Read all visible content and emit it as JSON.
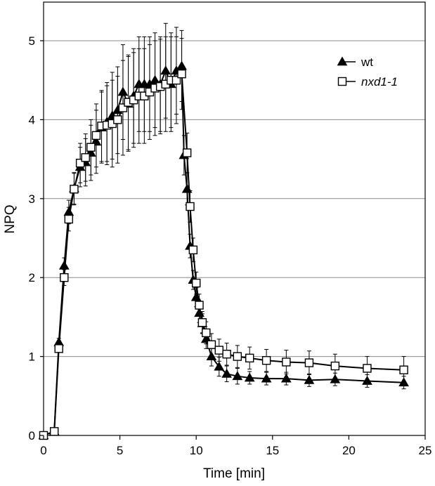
{
  "chart_data": {
    "type": "line",
    "title": "",
    "xlabel": "Time [min]",
    "ylabel": "NPQ",
    "xlim": [
      0,
      25
    ],
    "ylim": [
      0,
      5.5
    ],
    "x_ticks": [
      0,
      5,
      10,
      15,
      20,
      25
    ],
    "y_ticks": [
      0,
      1,
      2,
      3,
      4,
      5
    ],
    "grid": "horizontal",
    "legend_position": "top-right",
    "series": [
      {
        "name": "wt",
        "marker": "filled-triangle",
        "color": "#000000",
        "x": [
          0,
          0.7,
          1.0,
          1.35,
          1.65,
          2.0,
          2.4,
          2.75,
          3.1,
          3.45,
          3.8,
          4.15,
          4.5,
          4.85,
          5.2,
          5.55,
          5.9,
          6.25,
          6.6,
          6.95,
          7.3,
          7.65,
          8.0,
          8.35,
          8.7,
          9.05,
          9.2,
          9.4,
          9.6,
          9.8,
          10.0,
          10.2,
          10.4,
          10.65,
          11.0,
          11.5,
          12.0,
          12.7,
          13.5,
          14.6,
          15.9,
          17.4,
          19.1,
          21.2,
          23.6
        ],
        "y": [
          0,
          0.05,
          1.18,
          2.15,
          2.83,
          3.13,
          3.4,
          3.46,
          3.58,
          3.72,
          3.9,
          3.97,
          4.05,
          4.12,
          4.35,
          4.2,
          4.3,
          4.45,
          4.45,
          4.45,
          4.5,
          4.45,
          4.62,
          4.45,
          4.62,
          4.68,
          3.55,
          3.12,
          2.4,
          1.97,
          1.75,
          1.55,
          1.42,
          1.22,
          1.0,
          0.87,
          0.78,
          0.75,
          0.73,
          0.72,
          0.72,
          0.7,
          0.71,
          0.69,
          0.67
        ],
        "error": [
          0,
          0,
          0.05,
          0.1,
          0.15,
          0.2,
          0.25,
          0.3,
          0.35,
          0.4,
          0.45,
          0.5,
          0.55,
          0.55,
          0.6,
          0.6,
          0.6,
          0.6,
          0.6,
          0.6,
          0.6,
          0.6,
          0.6,
          0.6,
          0.55,
          0.45,
          0.25,
          0.2,
          0.15,
          0.12,
          0.12,
          0.12,
          0.12,
          0.12,
          0.12,
          0.12,
          0.1,
          0.1,
          0.08,
          0.08,
          0.08,
          0.08,
          0.08,
          0.08,
          0.08
        ]
      },
      {
        "name": "nxd1-1",
        "marker": "open-square",
        "color": "#000000",
        "x": [
          0,
          0.7,
          1.0,
          1.35,
          1.65,
          2.0,
          2.4,
          2.75,
          3.1,
          3.45,
          3.8,
          4.15,
          4.5,
          4.85,
          5.2,
          5.55,
          5.9,
          6.25,
          6.6,
          6.95,
          7.3,
          7.65,
          8.0,
          8.35,
          8.7,
          9.05,
          9.4,
          9.6,
          9.8,
          10.0,
          10.2,
          10.4,
          10.65,
          11.0,
          11.5,
          12.0,
          12.7,
          13.5,
          14.6,
          15.9,
          17.4,
          19.1,
          21.2,
          23.6
        ],
        "y": [
          0,
          0.05,
          1.1,
          2.0,
          2.74,
          3.12,
          3.45,
          3.52,
          3.65,
          3.8,
          3.92,
          3.93,
          3.95,
          4.0,
          4.15,
          4.22,
          4.25,
          4.3,
          4.3,
          4.35,
          4.4,
          4.42,
          4.45,
          4.5,
          4.5,
          4.58,
          3.58,
          2.9,
          2.35,
          1.93,
          1.65,
          1.43,
          1.3,
          1.15,
          1.08,
          1.03,
          1.0,
          0.98,
          0.95,
          0.93,
          0.92,
          0.88,
          0.85,
          0.83
        ],
        "error": [
          0,
          0,
          0.05,
          0.1,
          0.15,
          0.2,
          0.25,
          0.3,
          0.35,
          0.4,
          0.45,
          0.5,
          0.55,
          0.55,
          0.6,
          0.6,
          0.6,
          0.6,
          0.6,
          0.6,
          0.6,
          0.6,
          0.6,
          0.6,
          0.55,
          0.45,
          0.25,
          0.2,
          0.15,
          0.14,
          0.14,
          0.14,
          0.14,
          0.14,
          0.14,
          0.14,
          0.14,
          0.14,
          0.14,
          0.15,
          0.15,
          0.15,
          0.15,
          0.17
        ]
      }
    ]
  }
}
